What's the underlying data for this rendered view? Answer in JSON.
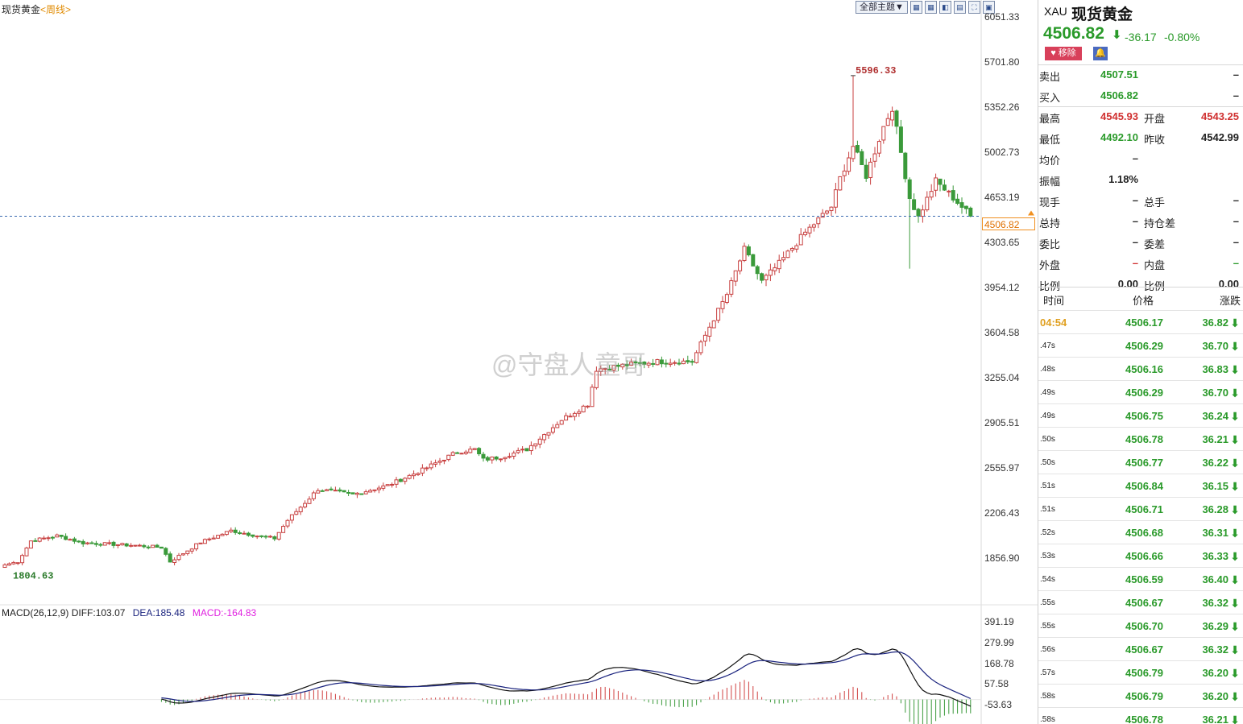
{
  "header": {
    "symbol": "现货黄金",
    "period": "<周线>",
    "theme_button": "全部主题",
    "toolbar_icons": [
      "grid-icon",
      "grid-icon",
      "window-icon",
      "window-icon",
      "fullscreen-icon",
      "expand-icon"
    ]
  },
  "price_axis": [
    "6051.33",
    "5701.80",
    "5352.26",
    "5002.73",
    "4653.19",
    "4303.65",
    "3954.12",
    "3604.58",
    "3255.04",
    "2905.51",
    "2555.97",
    "2206.43",
    "1856.90"
  ],
  "current_price_tag": "4506.82",
  "annotations": {
    "high": "5596.33",
    "low": "1804.63"
  },
  "macd": {
    "label": "MACD(26,12,9)",
    "diff": "DIFF:103.07",
    "dea": "DEA:185.48",
    "macd": "MACD:-164.83",
    "axis": [
      "391.19",
      "279.99",
      "168.78",
      "57.58",
      "-53.63"
    ]
  },
  "watermark": "@守盘人童哥",
  "chart_data": {
    "type": "candlestick",
    "title": "现货黄金",
    "period": "周线",
    "ylim": [
      1700,
      6150
    ],
    "last_price": 4506.82,
    "high_marker": 5596.33,
    "low_marker": 1804.63,
    "anchors": [
      [
        0,
        1805
      ],
      [
        3,
        1830
      ],
      [
        6,
        1990
      ],
      [
        12,
        2030
      ],
      [
        18,
        1975
      ],
      [
        30,
        1955
      ],
      [
        36,
        1940
      ],
      [
        38,
        1830
      ],
      [
        45,
        1980
      ],
      [
        52,
        2070
      ],
      [
        58,
        2030
      ],
      [
        62,
        2010
      ],
      [
        65,
        2150
      ],
      [
        72,
        2390
      ],
      [
        80,
        2350
      ],
      [
        88,
        2420
      ],
      [
        96,
        2540
      ],
      [
        104,
        2680
      ],
      [
        108,
        2700
      ],
      [
        110,
        2620
      ],
      [
        114,
        2640
      ],
      [
        120,
        2700
      ],
      [
        128,
        2930
      ],
      [
        134,
        3050
      ],
      [
        136,
        3320
      ],
      [
        142,
        3350
      ],
      [
        150,
        3380
      ],
      [
        158,
        3380
      ],
      [
        162,
        3650
      ],
      [
        166,
        3900
      ],
      [
        170,
        4250
      ],
      [
        174,
        4000
      ],
      [
        178,
        4140
      ],
      [
        184,
        4380
      ],
      [
        190,
        4580
      ],
      [
        192,
        4800
      ],
      [
        195,
        5050
      ],
      [
        198,
        4820
      ],
      [
        202,
        5200
      ],
      [
        204,
        5350
      ],
      [
        206,
        5000
      ],
      [
        208,
        4650
      ],
      [
        210,
        4500
      ],
      [
        214,
        4780
      ],
      [
        218,
        4650
      ],
      [
        220,
        4580
      ],
      [
        222,
        4507
      ]
    ],
    "macd_ylim": [
      -53.63,
      391.19
    ]
  },
  "quote": {
    "code": "XAU",
    "name": "现货黄金",
    "price": "4506.82",
    "change": "-36.17",
    "change_pct": "-0.80%",
    "remove_label": "移除",
    "rows": [
      {
        "l1": "卖出",
        "v1": "4507.51",
        "c1": "green",
        "l2": "",
        "v2": "–",
        "c2": "dark",
        "sep": true
      },
      {
        "l1": "买入",
        "v1": "4506.82",
        "c1": "green",
        "l2": "",
        "v2": "–",
        "c2": "dark",
        "sep": false
      },
      {
        "l1": "最高",
        "v1": "4545.93",
        "c1": "red",
        "l2": "开盘",
        "v2": "4543.25",
        "c2": "red",
        "sep": true
      },
      {
        "l1": "最低",
        "v1": "4492.10",
        "c1": "green",
        "l2": "昨收",
        "v2": "4542.99",
        "c2": "dark",
        "sep": false
      },
      {
        "l1": "均价",
        "v1": "–",
        "c1": "dark",
        "l2": "",
        "v2": "",
        "c2": "dark",
        "sep": false
      },
      {
        "l1": "振幅",
        "v1": "1.18%",
        "c1": "dark",
        "l2": "",
        "v2": "",
        "c2": "dark",
        "sep": false
      },
      {
        "l1": "现手",
        "v1": "–",
        "c1": "dark",
        "l2": "总手",
        "v2": "–",
        "c2": "dark",
        "sep": false
      },
      {
        "l1": "总持",
        "v1": "–",
        "c1": "dark",
        "l2": "持仓差",
        "v2": "–",
        "c2": "dark",
        "sep": false
      },
      {
        "l1": "委比",
        "v1": "–",
        "c1": "dark",
        "l2": "委差",
        "v2": "–",
        "c2": "dark",
        "sep": false
      },
      {
        "l1": "外盘",
        "v1": "–",
        "c1": "red",
        "l2": "内盘",
        "v2": "–",
        "c2": "green",
        "sep": false
      },
      {
        "l1": "比例",
        "v1": "0.00",
        "c1": "dark",
        "l2": "比例",
        "v2": "0.00",
        "c2": "dark",
        "sep": false
      }
    ]
  },
  "ticks": {
    "headers": {
      "time": "时间",
      "price": "价格",
      "change": "涨跌"
    },
    "rows": [
      {
        "time": "04:54",
        "price": "4506.17",
        "change": "36.82"
      },
      {
        "time": ".47s",
        "price": "4506.29",
        "change": "36.70"
      },
      {
        "time": ".48s",
        "price": "4506.16",
        "change": "36.83"
      },
      {
        "time": ".49s",
        "price": "4506.29",
        "change": "36.70"
      },
      {
        "time": ".49s",
        "price": "4506.75",
        "change": "36.24"
      },
      {
        "time": ".50s",
        "price": "4506.78",
        "change": "36.21"
      },
      {
        "time": ".50s",
        "price": "4506.77",
        "change": "36.22"
      },
      {
        "time": ".51s",
        "price": "4506.84",
        "change": "36.15"
      },
      {
        "time": ".51s",
        "price": "4506.71",
        "change": "36.28"
      },
      {
        "time": ".52s",
        "price": "4506.68",
        "change": "36.31"
      },
      {
        "time": ".53s",
        "price": "4506.66",
        "change": "36.33"
      },
      {
        "time": ".54s",
        "price": "4506.59",
        "change": "36.40"
      },
      {
        "time": ".55s",
        "price": "4506.67",
        "change": "36.32"
      },
      {
        "time": ".55s",
        "price": "4506.70",
        "change": "36.29"
      },
      {
        "time": ".56s",
        "price": "4506.67",
        "change": "36.32"
      },
      {
        "time": ".57s",
        "price": "4506.79",
        "change": "36.20"
      },
      {
        "time": ".58s",
        "price": "4506.79",
        "change": "36.20"
      },
      {
        "time": ".58s",
        "price": "4506.78",
        "change": "36.21"
      }
    ]
  }
}
